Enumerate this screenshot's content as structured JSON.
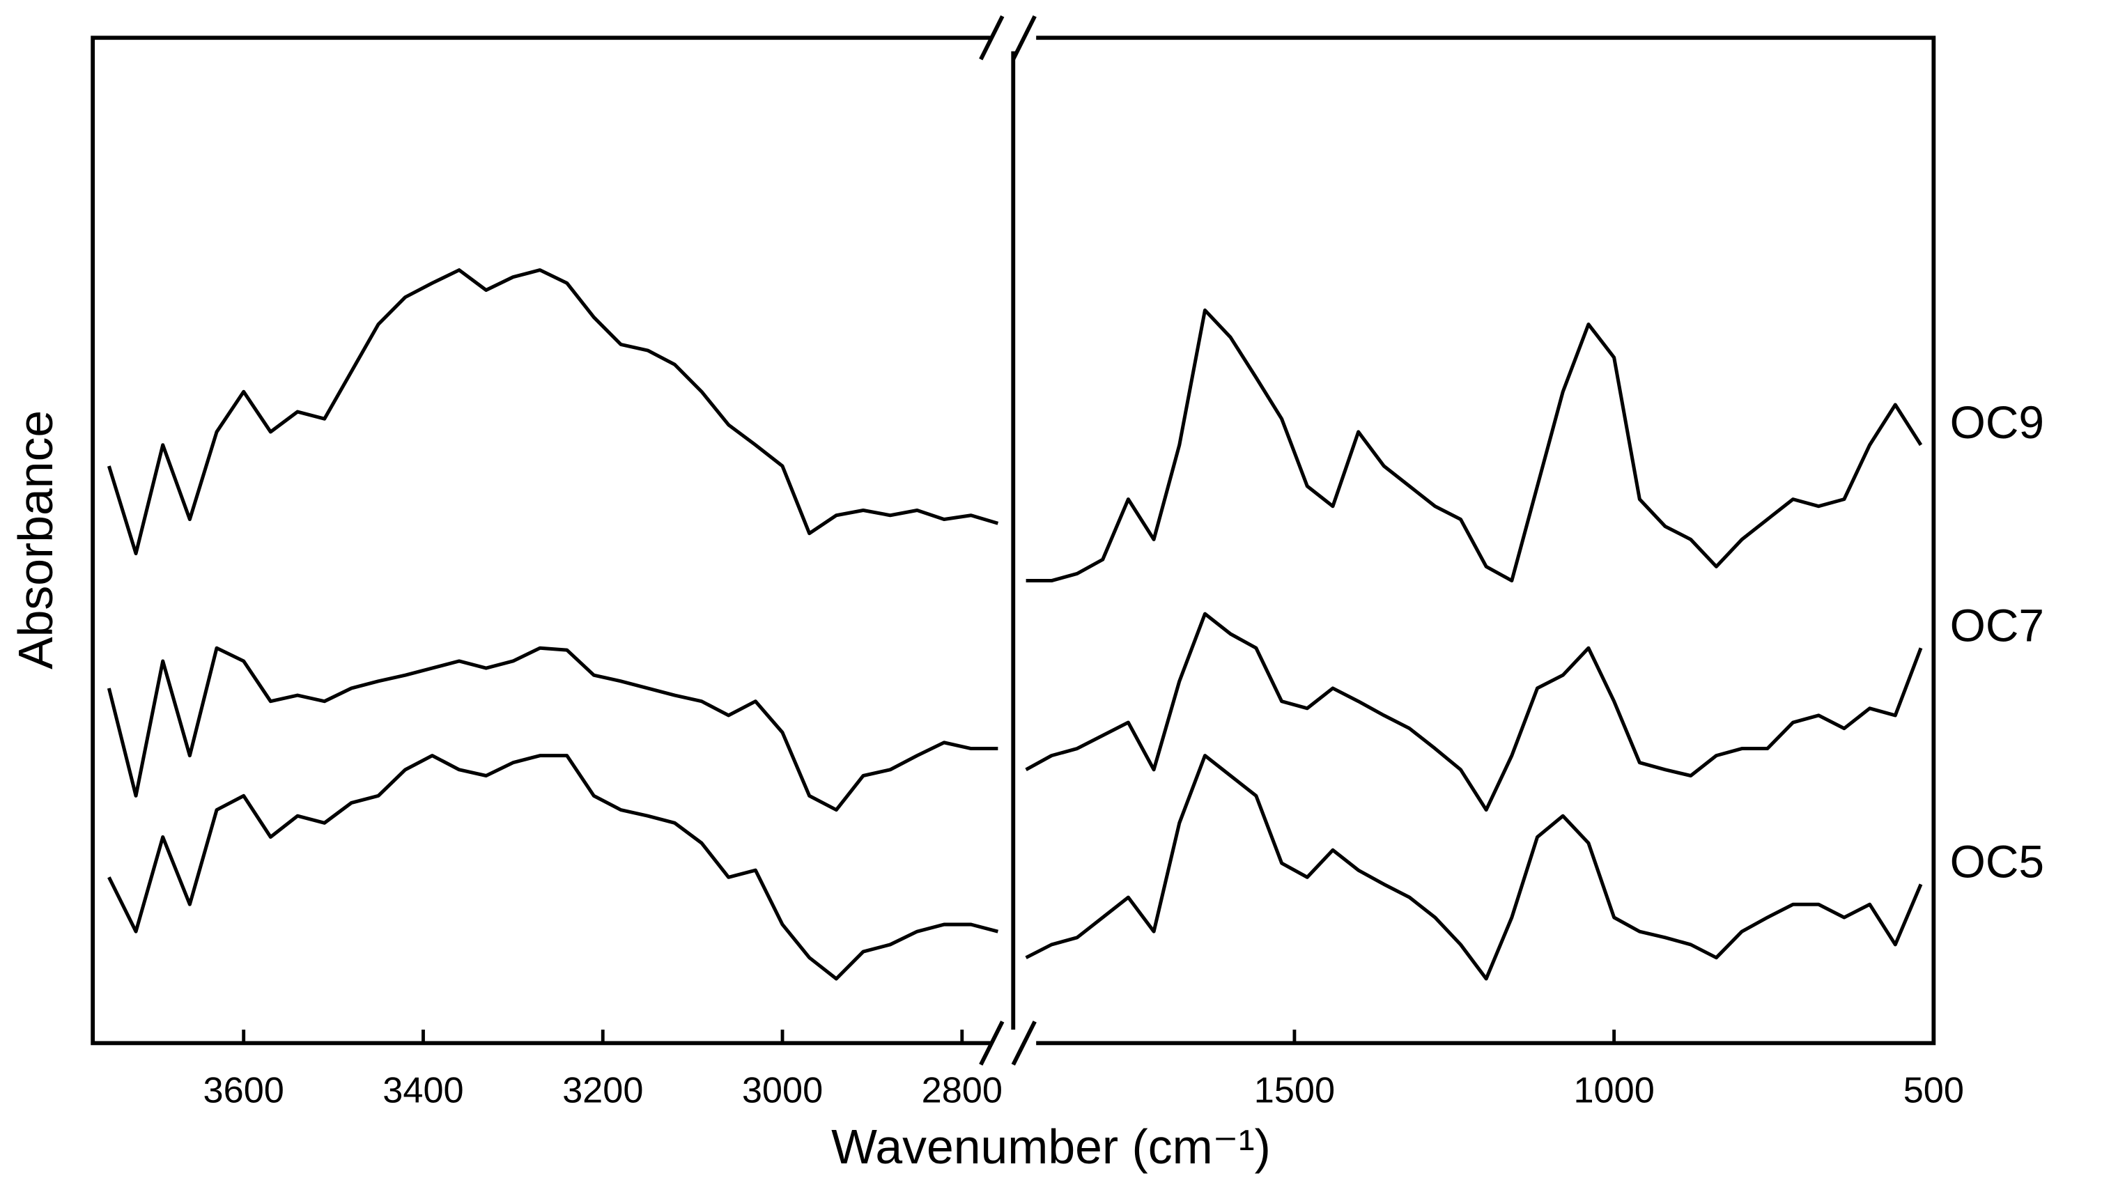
{
  "chart_data": [
    {
      "type": "line",
      "xlabel": "Wavenumber (cm⁻¹)",
      "ylabel": "Absorbance",
      "xlim": [
        3768,
        2743
      ],
      "xticks": [
        3600,
        3400,
        3200,
        3000,
        2800
      ],
      "ylim": [
        0,
        100
      ],
      "x": [
        3750,
        3720,
        3690,
        3660,
        3630,
        3600,
        3570,
        3540,
        3510,
        3480,
        3450,
        3420,
        3390,
        3360,
        3330,
        3300,
        3270,
        3240,
        3210,
        3180,
        3150,
        3120,
        3090,
        3060,
        3030,
        3000,
        2970,
        2940,
        2910,
        2880,
        2850,
        2820,
        2790,
        2760
      ],
      "series": [
        {
          "color": "#000000",
          "values": [
            57.4,
            48.7,
            59.5,
            52.1,
            60.8,
            64.8,
            60.8,
            62.8,
            62.1,
            66.8,
            71.5,
            74.2,
            75.6,
            76.9,
            74.9,
            76.2,
            76.9,
            75.6,
            72.2,
            69.5,
            68.9,
            67.5,
            64.8,
            61.5,
            59.5,
            57.4,
            50.7,
            52.5,
            53.0,
            52.5,
            53.0,
            52.1,
            52.5,
            51.7
          ]
        },
        {
          "color": "#000000",
          "values": [
            35.3,
            24.6,
            38.0,
            28.6,
            39.3,
            38.0,
            34.0,
            34.6,
            34.0,
            35.3,
            36.0,
            36.6,
            37.3,
            38.0,
            37.3,
            38.0,
            39.3,
            39.1,
            36.6,
            36.0,
            35.3,
            34.6,
            34.0,
            32.6,
            34.0,
            30.9,
            24.6,
            23.2,
            26.6,
            27.2,
            28.6,
            29.9,
            29.3,
            29.3
          ]
        },
        {
          "color": "#000000",
          "values": [
            16.5,
            11.1,
            20.5,
            13.8,
            23.2,
            24.6,
            20.5,
            22.6,
            21.9,
            23.9,
            24.6,
            27.2,
            28.6,
            27.2,
            26.6,
            27.9,
            28.6,
            28.6,
            24.6,
            23.2,
            22.6,
            21.9,
            19.9,
            16.5,
            17.2,
            11.8,
            8.5,
            6.4,
            9.1,
            9.8,
            11.1,
            11.8,
            11.8,
            11.1
          ]
        }
      ]
    },
    {
      "type": "line",
      "xlim": [
        1940,
        500
      ],
      "xticks": [
        1500,
        1000,
        500
      ],
      "ylim": [
        0,
        100
      ],
      "x": [
        1920,
        1880,
        1840,
        1800,
        1760,
        1720,
        1680,
        1640,
        1600,
        1560,
        1520,
        1480,
        1440,
        1400,
        1360,
        1320,
        1280,
        1240,
        1200,
        1160,
        1120,
        1080,
        1040,
        1000,
        960,
        920,
        880,
        840,
        800,
        760,
        720,
        680,
        640,
        600,
        560,
        520
      ],
      "series": [
        {
          "name": "OC9",
          "color": "#000000",
          "values": [
            46.0,
            46.0,
            46.7,
            48.1,
            54.1,
            50.1,
            59.5,
            72.9,
            70.2,
            66.2,
            62.1,
            55.4,
            53.4,
            60.8,
            57.4,
            55.4,
            53.4,
            52.1,
            47.4,
            46.0,
            55.4,
            64.8,
            71.5,
            68.2,
            54.1,
            51.4,
            50.1,
            47.4,
            50.1,
            52.1,
            54.1,
            53.4,
            54.1,
            59.5,
            63.5,
            59.5
          ]
        },
        {
          "name": "OC7",
          "color": "#000000",
          "values": [
            27.2,
            28.6,
            29.3,
            30.6,
            31.9,
            27.2,
            36.0,
            42.7,
            40.7,
            39.3,
            34.0,
            33.3,
            35.3,
            34.0,
            32.6,
            31.3,
            29.3,
            27.2,
            23.2,
            28.6,
            35.3,
            36.6,
            39.3,
            34.0,
            27.9,
            27.2,
            26.6,
            28.6,
            29.3,
            29.3,
            31.9,
            32.6,
            31.3,
            33.3,
            32.6,
            39.3
          ]
        },
        {
          "name": "OC5",
          "color": "#000000",
          "values": [
            8.5,
            9.8,
            10.5,
            12.5,
            14.5,
            11.1,
            21.9,
            28.6,
            26.6,
            24.6,
            17.9,
            16.5,
            19.2,
            17.2,
            15.8,
            14.5,
            12.5,
            9.8,
            6.4,
            12.5,
            20.5,
            22.6,
            19.9,
            12.5,
            11.1,
            10.5,
            9.8,
            8.5,
            11.1,
            12.5,
            13.8,
            13.8,
            12.5,
            13.8,
            9.8,
            15.8
          ]
        }
      ]
    }
  ]
}
